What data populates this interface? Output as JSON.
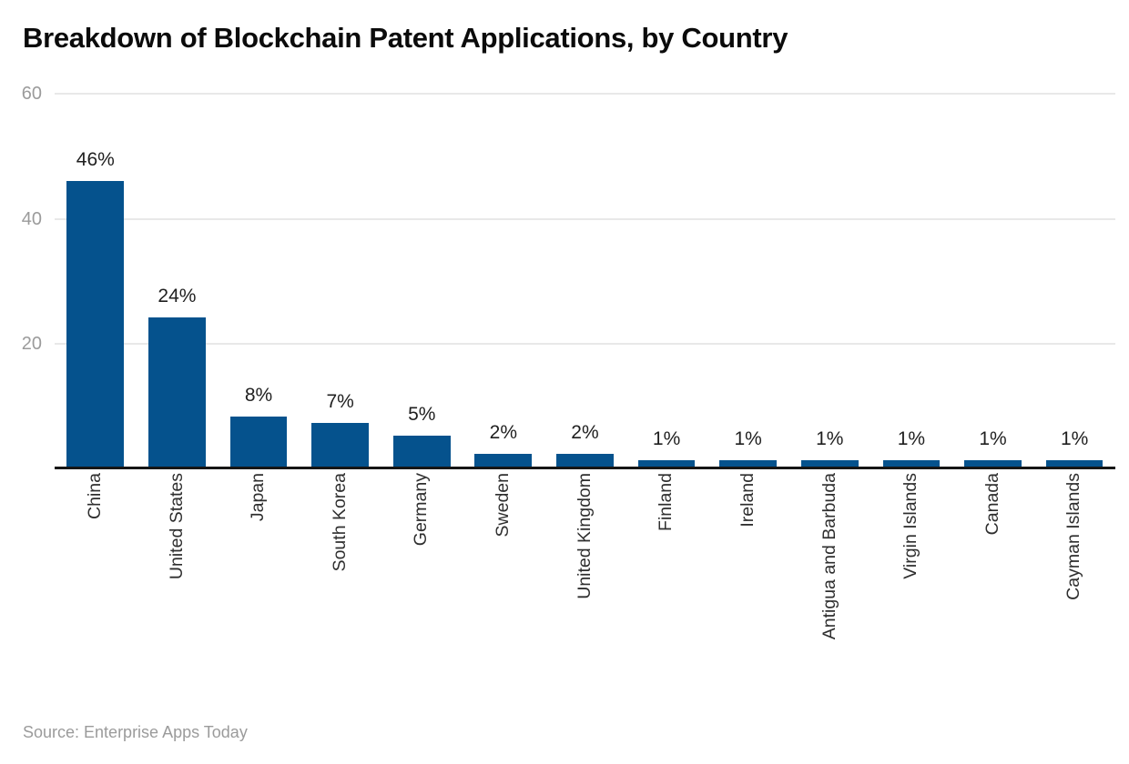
{
  "title": "Breakdown of Blockchain Patent Applications, by Country",
  "source_note": "Source: Enterprise Apps Today",
  "colors": {
    "bar": "#05528d",
    "gridline": "#e8e8e8",
    "axis": "#161616",
    "tick_label": "#9b9b9b"
  },
  "chart_data": {
    "type": "bar",
    "title": "Breakdown of Blockchain Patent Applications, by Country",
    "categories": [
      "China",
      "United States",
      "Japan",
      "South Korea",
      "Germany",
      "Sweden",
      "United Kingdom",
      "Finland",
      "Ireland",
      "Antigua and Barbuda",
      "Virgin Islands",
      "Canada",
      "Cayman Islands"
    ],
    "values": [
      46,
      24,
      8,
      7,
      5,
      2,
      2,
      1,
      1,
      1,
      1,
      1,
      1
    ],
    "data_labels": [
      "46%",
      "24%",
      "8%",
      "7%",
      "5%",
      "2%",
      "2%",
      "1%",
      "1%",
      "1%",
      "1%",
      "1%",
      "1%"
    ],
    "xlabel": "",
    "ylabel": "",
    "ylim": [
      0,
      60
    ],
    "yticks": [
      20,
      40,
      60
    ],
    "grid": true,
    "legend": false,
    "x_label_rotation_deg": 90,
    "source": "Source: Enterprise Apps Today"
  }
}
